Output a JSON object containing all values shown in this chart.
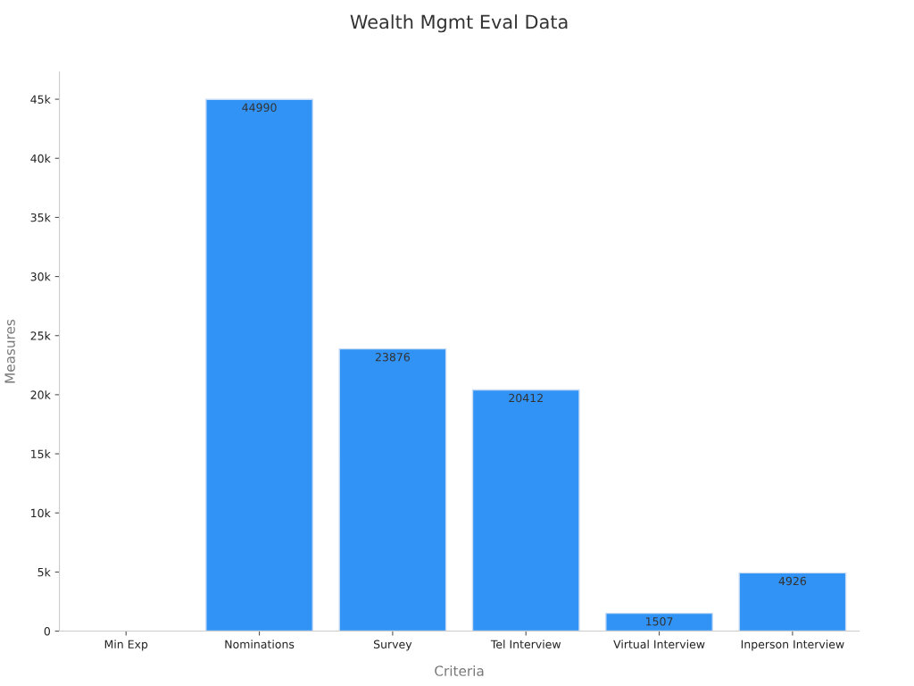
{
  "chart_data": {
    "type": "bar",
    "title": "Wealth Mgmt Eval Data",
    "xlabel": "Criteria",
    "ylabel": "Measures",
    "categories": [
      "Min Exp",
      "Nominations",
      "Survey",
      "Tel Interview",
      "Virtual Interview",
      "Inperson Interview"
    ],
    "values": [
      null,
      44990,
      23876,
      20412,
      1507,
      4926
    ],
    "color": "#3193f5",
    "ylim": [
      0,
      47300
    ],
    "yticks": [
      0,
      {
        "value": 5000,
        "label": "5k"
      },
      {
        "value": 10000,
        "label": "10k"
      },
      {
        "value": 15000,
        "label": "15k"
      },
      {
        "value": 20000,
        "label": "20k"
      },
      {
        "value": 25000,
        "label": "25k"
      },
      {
        "value": 30000,
        "label": "30k"
      },
      {
        "value": 35000,
        "label": "35k"
      },
      {
        "value": 40000,
        "label": "40k"
      },
      {
        "value": 45000,
        "label": "45k"
      }
    ],
    "grid": false,
    "legend": false,
    "data_labels": true
  }
}
